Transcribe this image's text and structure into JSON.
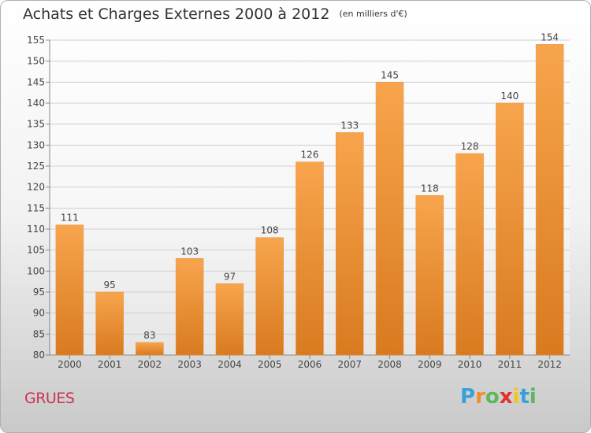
{
  "header": {
    "title": "Achats et Charges Externes 2000 à 2012",
    "unit": "(en milliers d'€)"
  },
  "footer": {
    "place": "GRUES",
    "logo_letters": [
      "P",
      "r",
      "o",
      "x",
      "i",
      "t",
      "i"
    ],
    "logo_colors": [
      "#3aa0d8",
      "#f28c28",
      "#5cb85c",
      "#e0312d",
      "#f5c518",
      "#3aa0d8",
      "#5cb85c"
    ]
  },
  "chart_data": {
    "type": "bar",
    "title": "Achats et Charges Externes 2000 à 2012",
    "categories": [
      "2000",
      "2001",
      "2002",
      "2003",
      "2004",
      "2005",
      "2006",
      "2007",
      "2008",
      "2009",
      "2010",
      "2011",
      "2012"
    ],
    "values": [
      111,
      95,
      83,
      103,
      97,
      108,
      126,
      133,
      145,
      118,
      128,
      140,
      154
    ],
    "ylim": [
      80,
      155
    ],
    "yticks": [
      80,
      85,
      90,
      95,
      100,
      105,
      110,
      115,
      120,
      125,
      130,
      135,
      140,
      145,
      150,
      155
    ],
    "grid": true,
    "bar_color_top": "#f7a54d",
    "bar_color_bottom": "#d97a1f"
  }
}
